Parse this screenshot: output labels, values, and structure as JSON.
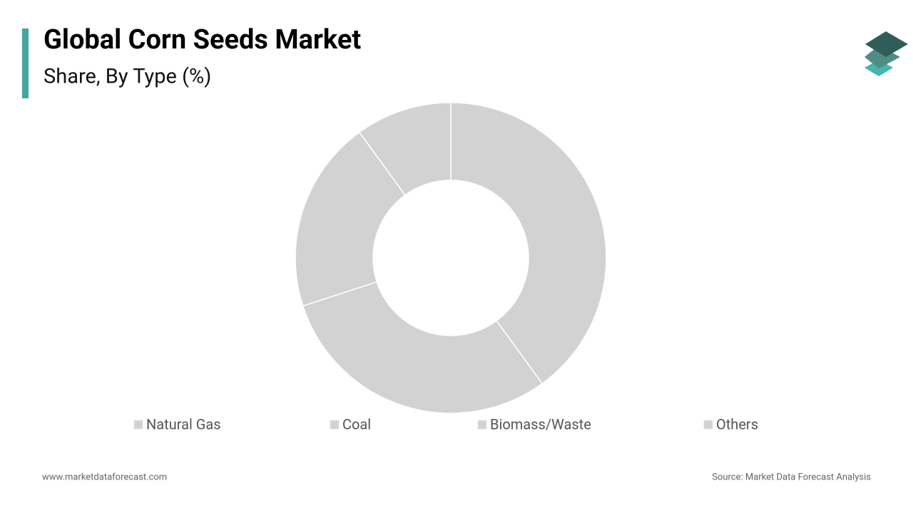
{
  "chart_data": {
    "type": "pie",
    "title": "Global Corn Seeds Market",
    "subtitle": "Share, By Type (%)",
    "categories": [
      "Natural Gas",
      "Coal",
      "Biomass/Waste",
      "Others"
    ],
    "values": [
      40,
      30,
      20,
      10
    ],
    "colors": [
      "#d3d2d3",
      "#d3d2d3",
      "#d3d2d3",
      "#d3d2d3"
    ]
  },
  "footer": {
    "website": "www.marketdataforecast.com",
    "source": "Source: Market Data Forecast Analysis"
  }
}
